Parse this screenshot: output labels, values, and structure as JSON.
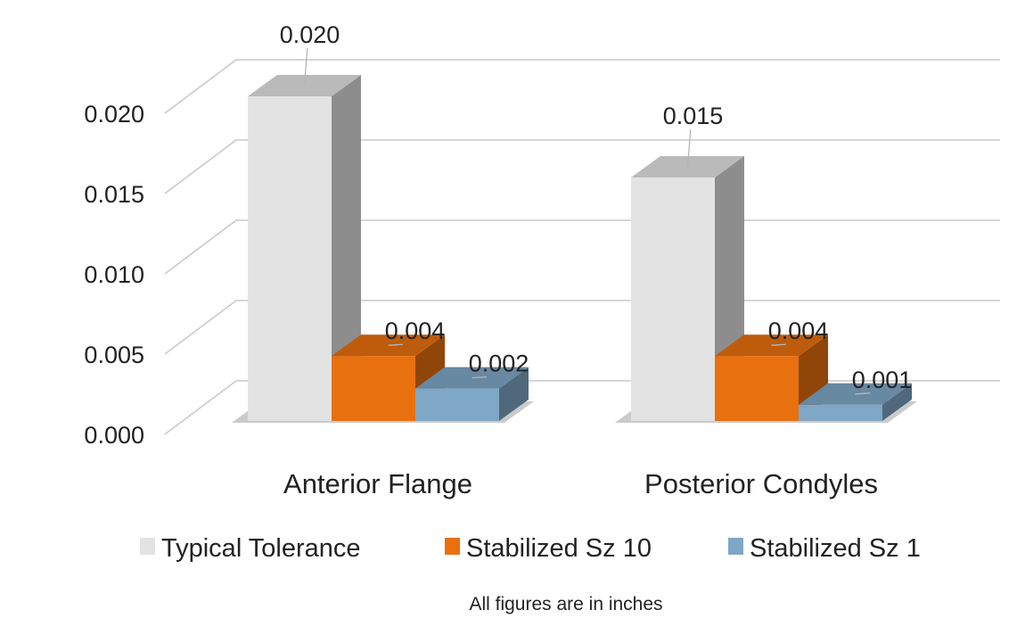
{
  "chart_data": {
    "type": "bar",
    "title": "",
    "xlabel": "",
    "ylabel": "",
    "ylim": [
      0,
      0.02
    ],
    "yticks": [
      "0.000",
      "0.005",
      "0.010",
      "0.015",
      "0.020"
    ],
    "categories": [
      "Anterior Flange",
      "Posterior Condyles"
    ],
    "series": [
      {
        "name": "Typical Tolerance",
        "values": [
          0.02,
          0.015
        ],
        "labels": [
          "0.020",
          "0.015"
        ],
        "color": "#e3e3e3"
      },
      {
        "name": "Stabilized Sz 10",
        "values": [
          0.004,
          0.004
        ],
        "labels": [
          "0.004",
          "0.004"
        ],
        "color": "#e8700f"
      },
      {
        "name": "Stabilized Sz 1",
        "values": [
          0.002,
          0.001
        ],
        "labels": [
          "0.002",
          "0.001"
        ],
        "color": "#7fa7c6"
      }
    ],
    "grid": true,
    "legend": "bottom",
    "note": "All figures are in inches"
  }
}
